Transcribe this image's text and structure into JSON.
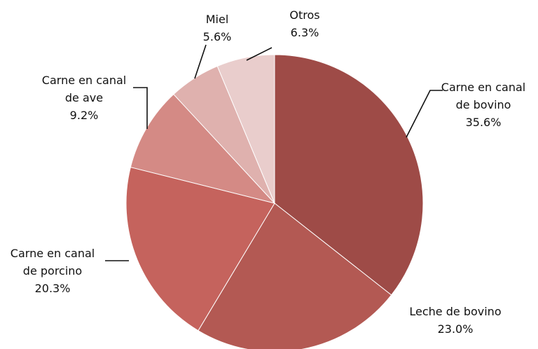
{
  "chart_data": {
    "type": "pie",
    "categories": [
      "Carne en canal de bovino",
      "Leche de bovino",
      "Carne en canal de porcino",
      "Carne en canal de ave",
      "Miel",
      "Otros"
    ],
    "values": [
      35.6,
      23.0,
      20.3,
      9.2,
      5.6,
      6.3
    ],
    "value_labels": [
      "35.6%",
      "23.0%",
      "20.3%",
      "9.2%",
      "5.6%",
      "6.3%"
    ],
    "colors": [
      "#9e4b47",
      "#b35953",
      "#c5635d",
      "#d48a85",
      "#dfb1ae",
      "#e9cdcc"
    ]
  }
}
